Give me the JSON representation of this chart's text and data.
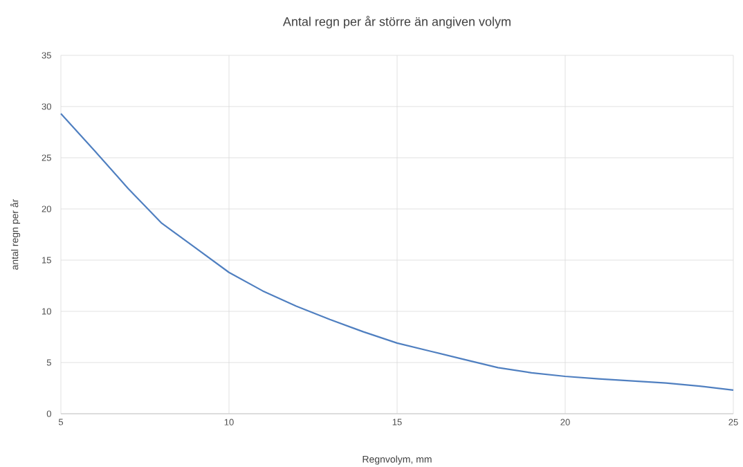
{
  "chart_data": {
    "type": "line",
    "title": "Antal regn per år större än angiven volym",
    "xlabel": "Regnvolym, mm",
    "ylabel": "antal regn per år",
    "x": [
      5,
      6,
      7,
      8,
      9,
      10,
      11,
      12,
      13,
      14,
      15,
      16,
      17,
      18,
      19,
      20,
      21,
      22,
      23,
      24,
      25
    ],
    "series": [
      {
        "color": "#4f7fc0",
        "values": [
          29.3,
          25.7,
          22.0,
          18.6,
          16.2,
          13.8,
          12.0,
          10.5,
          9.2,
          8.0,
          6.9,
          6.1,
          5.3,
          4.5,
          4.0,
          3.65,
          3.4,
          3.2,
          3.0,
          2.7,
          2.3
        ]
      }
    ],
    "xlim": [
      5,
      25
    ],
    "xticks": [
      5,
      10,
      15,
      20,
      25
    ],
    "ylim": [
      0,
      35
    ],
    "yticks": [
      0,
      5,
      10,
      15,
      20,
      25,
      30,
      35
    ],
    "grid": true,
    "line_style": "solid",
    "marker": "none"
  }
}
